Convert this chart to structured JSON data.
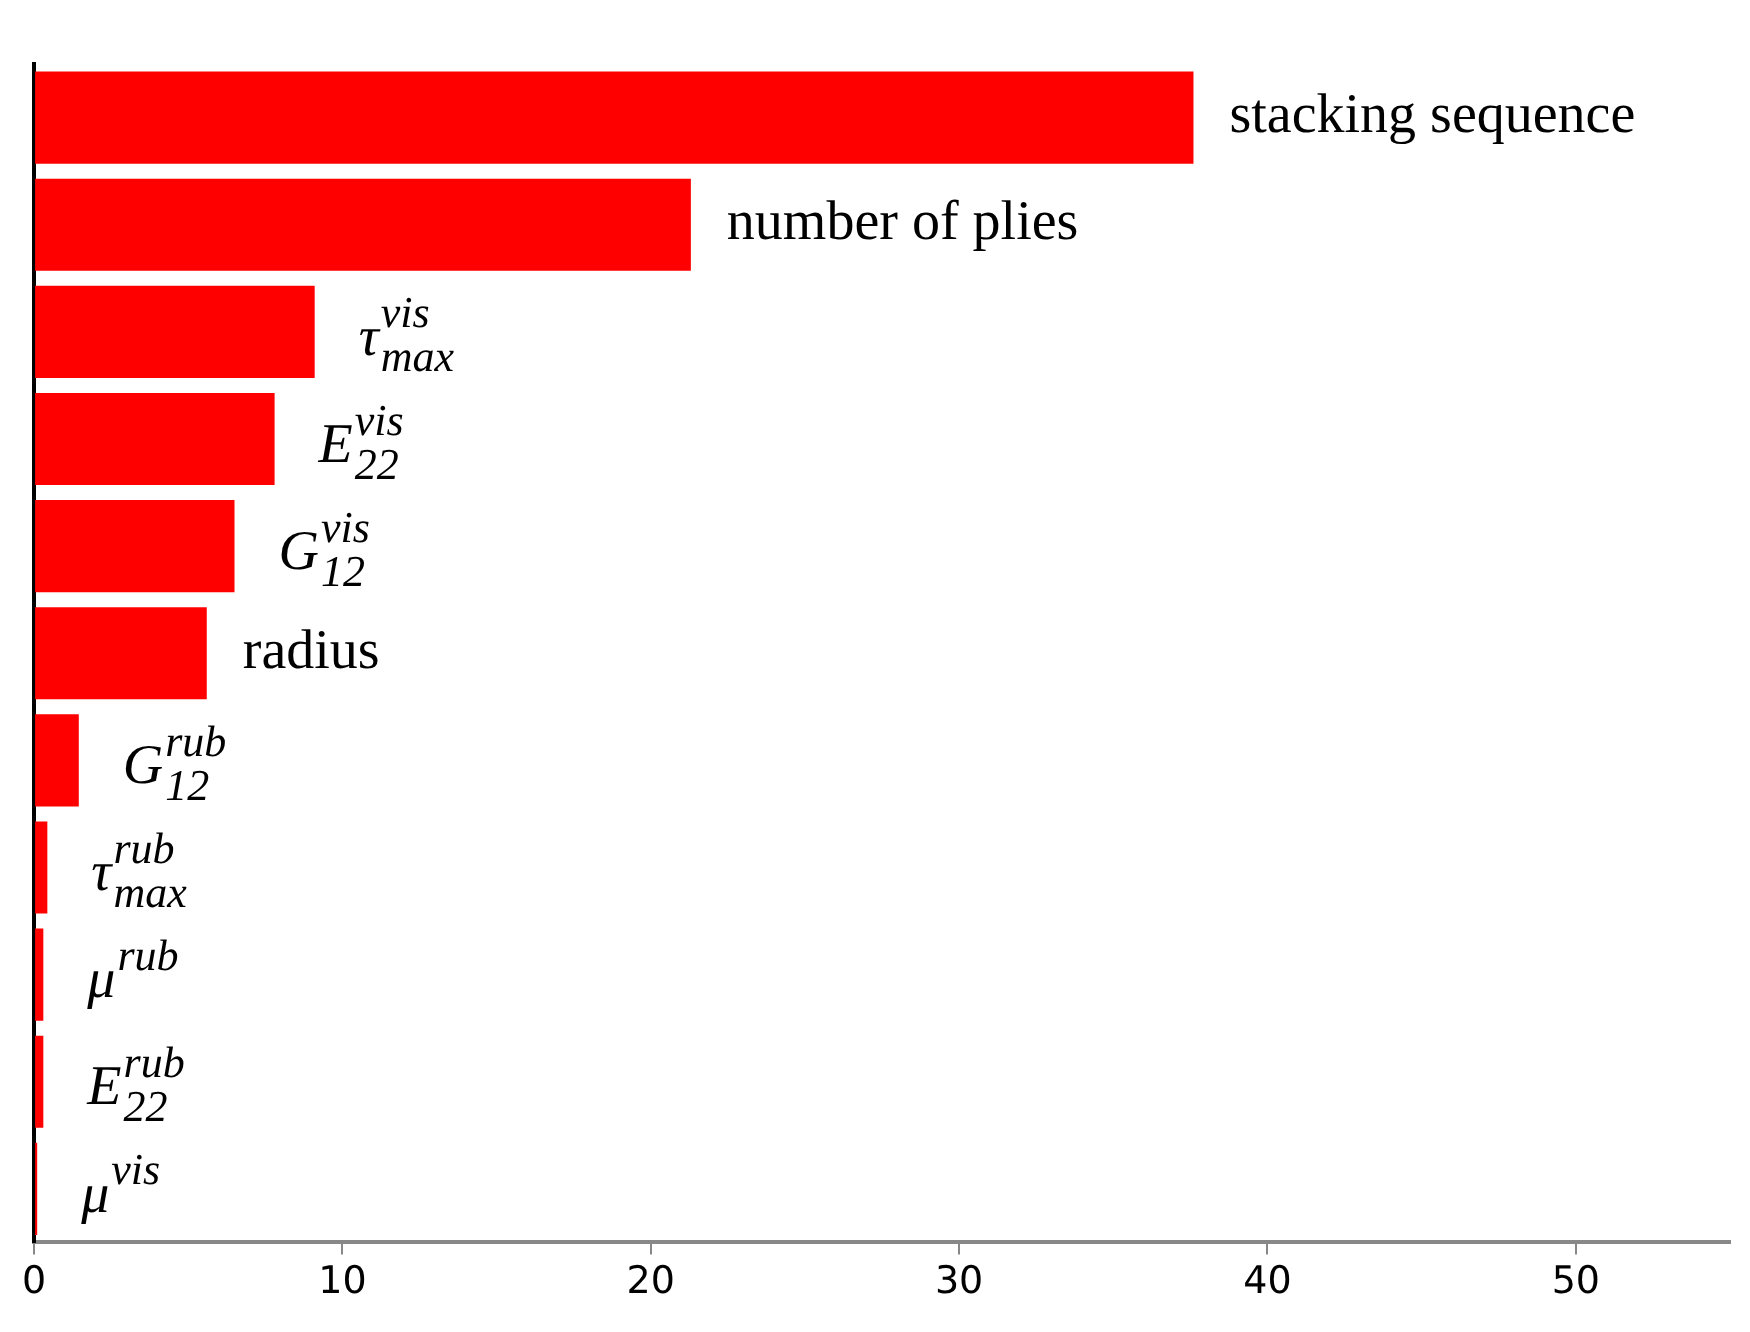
{
  "chart_data": {
    "type": "bar",
    "orientation": "horizontal",
    "categories": [
      "stacking sequence",
      "number of plies",
      "τ$_{max}$$^{vis}$",
      "E$_{22}$$^{vis}$",
      "G$_{12}$$^{vis}$",
      "radius",
      "G$_{12}$$^{rub}$",
      "τ$_{max}$$^{rub}$",
      "μ$^{rub}$",
      "E$_{22}$$^{rub}$",
      "μ$^{vis}$"
    ],
    "values": [
      37.6,
      21.3,
      9.1,
      7.8,
      6.5,
      5.6,
      1.45,
      0.43,
      0.3,
      0.3,
      0.1
    ],
    "color": "#ff0000",
    "xlim": [
      0,
      55
    ],
    "xticks": [
      0,
      10,
      20,
      30,
      40,
      50
    ],
    "grid": false,
    "legend": false,
    "tick_labels": "x"
  }
}
